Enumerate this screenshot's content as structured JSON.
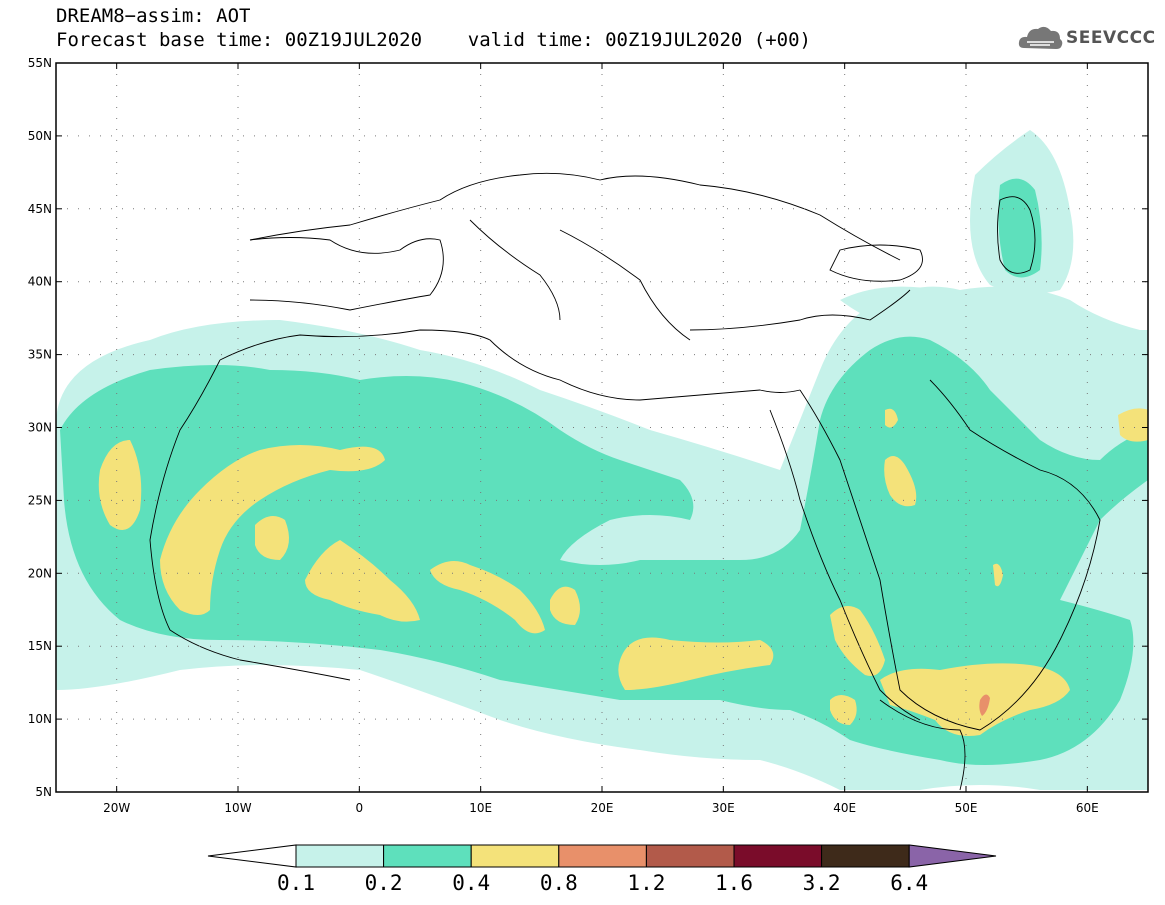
{
  "header": {
    "line1": "DREAM8−assim: AOT",
    "line2": "Forecast base time: 00Z19JUL2020    valid time: 00Z19JUL2020 (+00)"
  },
  "logo": {
    "text": "SEEVCCC",
    "icon": "cloud-logo-icon"
  },
  "axes": {
    "lat_labels": [
      "55N",
      "50N",
      "45N",
      "40N",
      "35N",
      "30N",
      "25N",
      "20N",
      "15N",
      "10N",
      "5N"
    ],
    "lon_labels": [
      "20W",
      "10W",
      "0",
      "10E",
      "20E",
      "30E",
      "40E",
      "50E",
      "60E"
    ]
  },
  "legend": {
    "levels": [
      "0.1",
      "0.2",
      "0.4",
      "0.8",
      "1.2",
      "1.6",
      "3.2",
      "6.4"
    ],
    "colors": [
      "#c6f2ea",
      "#5ee0bc",
      "#f4e27a",
      "#e8906a",
      "#b25a4a",
      "#7a0c2a",
      "#3e2a1a",
      "#8a64a8"
    ]
  },
  "colors": {
    "background": "#ffffff",
    "border": "#000000"
  }
}
